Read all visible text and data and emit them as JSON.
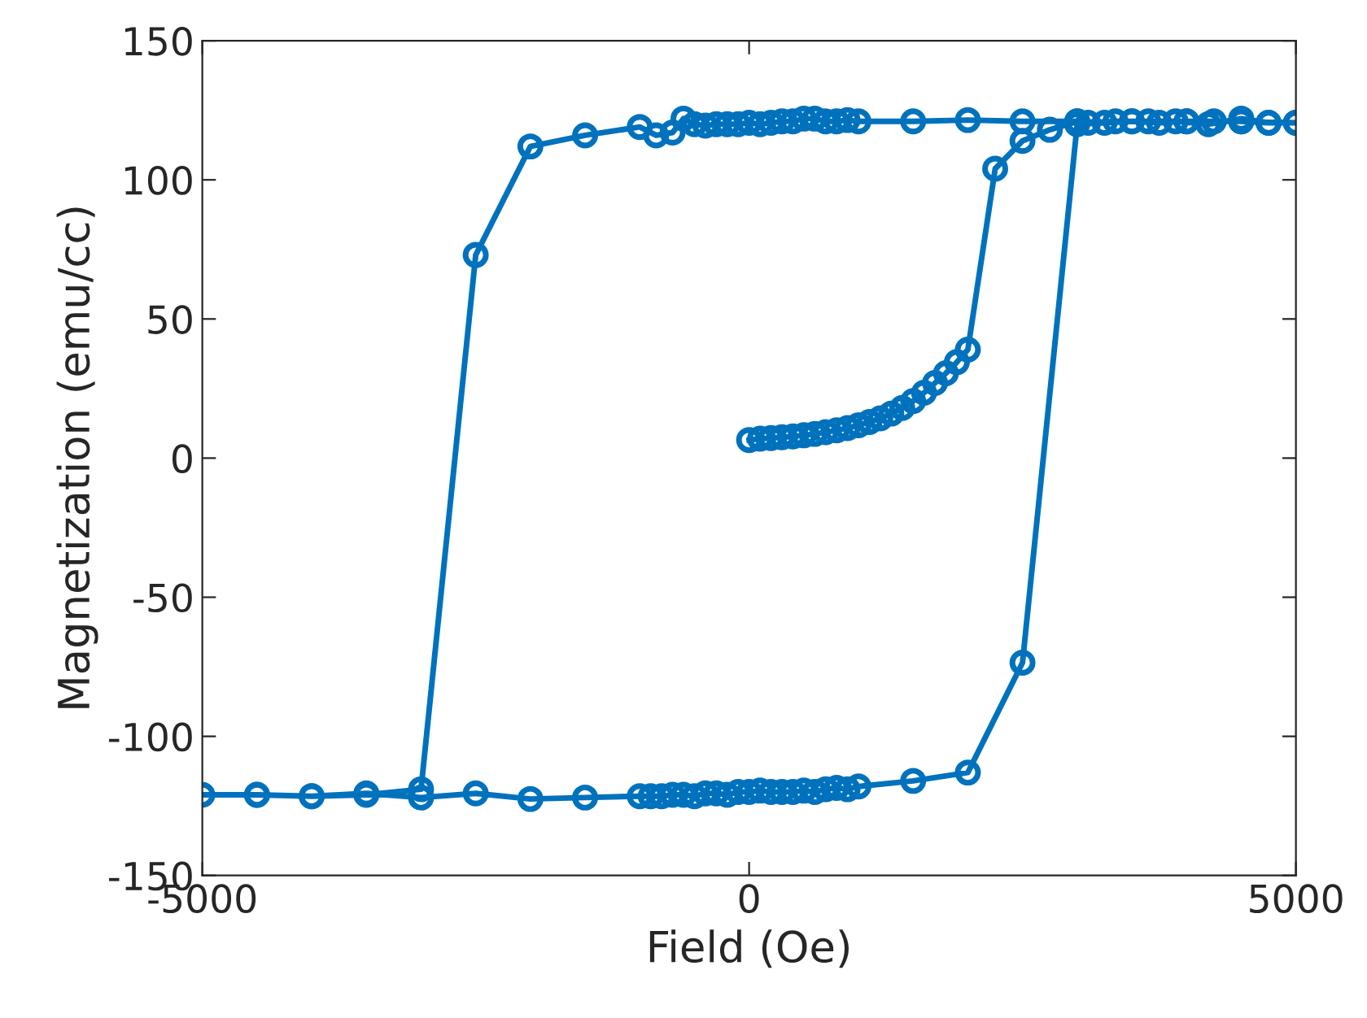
{
  "chart_data": {
    "type": "line",
    "xlabel": "Field (Oe)",
    "ylabel": "Magnetization (emu/cc)",
    "xlim": [
      -5000,
      5000
    ],
    "ylim": [
      -150,
      150
    ],
    "xticks": [
      -5000,
      0,
      5000
    ],
    "yticks": [
      -150,
      -100,
      -50,
      0,
      50,
      100,
      150
    ],
    "grid": false,
    "legend": false,
    "marker": "circle",
    "line_style": "solid",
    "series": [
      {
        "color": "#0072bd",
        "x": [
          0,
          100,
          200,
          300,
          400,
          500,
          600,
          700,
          800,
          900,
          1000,
          1100,
          1200,
          1300,
          1400,
          1500,
          1600,
          1700,
          1800,
          1900,
          2000,
          2250,
          2500,
          2750,
          3000,
          3250,
          3500,
          3750,
          4000,
          4250,
          4500,
          4750,
          5000,
          4750,
          4500,
          4200,
          3900,
          3650,
          3350,
          3100,
          3000,
          2500,
          2000,
          1500,
          1000,
          900,
          800,
          700,
          600,
          500,
          400,
          300,
          200,
          100,
          0,
          -100,
          -200,
          -300,
          -400,
          -500,
          -600,
          -700,
          -850,
          -1000,
          -1500,
          -2000,
          -2500,
          -3000,
          -3500,
          -4000,
          -4500,
          -5000,
          -4500,
          -4000,
          -3500,
          -3000,
          -2500,
          -2000,
          -1500,
          -1000,
          -900,
          -800,
          -700,
          -600,
          -500,
          -400,
          -300,
          -200,
          -100,
          0,
          100,
          200,
          300,
          400,
          500,
          600,
          700,
          800,
          900,
          1000,
          1500,
          2000,
          2500,
          3000,
          3500,
          4000,
          4500,
          5000
        ],
        "values": [
          6.5,
          7,
          7.2,
          7.5,
          7.8,
          8.2,
          8.7,
          9.3,
          10,
          10.8,
          11.8,
          13,
          14.3,
          16,
          18,
          20.5,
          23.5,
          27,
          30.5,
          34.5,
          39,
          104,
          114,
          118,
          121,
          120.5,
          121,
          120.5,
          121,
          121,
          121,
          120.5,
          120.5,
          120.5,
          122,
          120,
          121,
          121,
          121,
          120.5,
          121,
          121,
          121.5,
          121,
          121,
          121.5,
          121,
          121,
          122,
          122,
          121,
          121,
          120.5,
          120,
          120.5,
          120,
          120,
          120,
          119.5,
          120,
          122,
          117,
          116,
          119,
          116,
          112,
          73,
          -119,
          -121,
          -121.5,
          -121,
          -121,
          -121,
          -121.5,
          -120.5,
          -122,
          -120.5,
          -122.5,
          -122,
          -121.5,
          -121.5,
          -121.5,
          -121,
          -121,
          -121.5,
          -120.5,
          -120.5,
          -121,
          -120,
          -120,
          -119.5,
          -120,
          -120,
          -120,
          -119.5,
          -120,
          -119,
          -118.5,
          -119,
          -118,
          -116,
          -113,
          -73.5,
          120,
          121,
          121,
          121,
          120.5
        ]
      }
    ]
  }
}
